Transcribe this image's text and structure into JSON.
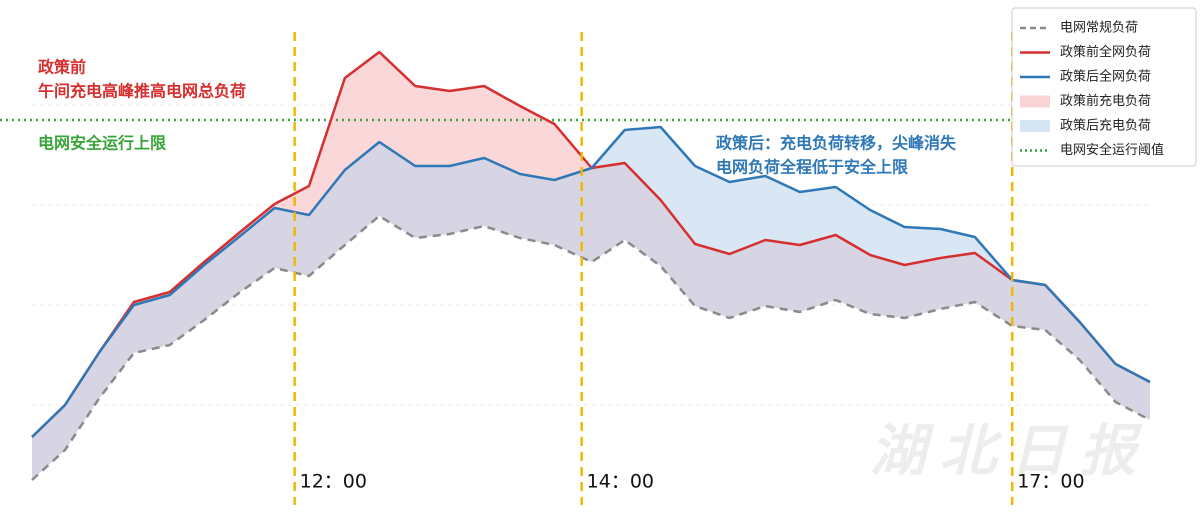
{
  "chart_data": {
    "type": "line",
    "x": [
      10.17,
      10.4,
      10.64,
      10.88,
      11.13,
      11.37,
      11.62,
      11.86,
      12.1,
      12.35,
      12.59,
      12.84,
      13.08,
      13.32,
      13.57,
      13.81,
      14.07,
      14.3,
      14.55,
      14.79,
      15.03,
      15.28,
      15.52,
      15.77,
      16.01,
      16.25,
      16.5,
      16.74,
      17.0,
      17.23,
      17.47,
      17.72,
      17.96
    ],
    "xlim": [
      10.17,
      17.96
    ],
    "ylim": [
      0,
      500
    ],
    "series": [
      {
        "name": "电网常规负荷",
        "color": "#8a8a8a",
        "dash": "8,6",
        "values": [
          20,
          50,
          102,
          147,
          155,
          180,
          208,
          232,
          224,
          255,
          284,
          262,
          266,
          274,
          262,
          255,
          238,
          260,
          234,
          194,
          182,
          194,
          188,
          200,
          186,
          182,
          191,
          198,
          174,
          170,
          140,
          98,
          80
        ]
      },
      {
        "name": "政策前全网负荷",
        "color": "#d62f2f",
        "values": [
          63,
          95,
          148,
          198,
          208,
          238,
          268,
          296,
          314,
          422,
          448,
          414,
          409,
          414,
          394,
          376,
          332,
          337,
          300,
          256,
          246,
          260,
          255,
          265,
          245,
          235,
          242,
          247,
          220,
          215,
          178,
          136,
          118
        ]
      },
      {
        "name": "政策后全网负荷",
        "color": "#2f78b8",
        "values": [
          63,
          95,
          148,
          195,
          205,
          235,
          264,
          292,
          285,
          330,
          358,
          334,
          334,
          342,
          326,
          320,
          332,
          370,
          373,
          334,
          318,
          324,
          308,
          313,
          290,
          273,
          271,
          263,
          220,
          215,
          178,
          136,
          118
        ]
      }
    ],
    "fills": [
      {
        "name": "政策前充电负荷",
        "color": "#f5b8bc",
        "upper": 1,
        "lower": 0
      },
      {
        "name": "政策后充电负荷",
        "color": "#b9d3ec",
        "upper": 2,
        "lower": 0
      }
    ],
    "threshold": {
      "name": "电网安全运行阈值",
      "value": 380,
      "color": "#3aa43a"
    },
    "vlines": [
      {
        "x": 12,
        "label": "12：00"
      },
      {
        "x": 14,
        "label": "14：00"
      },
      {
        "x": 17,
        "label": "17：00"
      }
    ],
    "vline_color": "#f2b705",
    "annotations": [
      {
        "lines": [
          "政策前",
          "午间充电高峰推高电网总负荷"
        ],
        "color": "#d62f2f"
      },
      {
        "lines": [
          "电网安全运行上限"
        ],
        "color": "#3aa43a"
      },
      {
        "lines": [
          "政策后：充电负荷转移，尖峰消失",
          "电网负荷全程低于安全上限"
        ],
        "color": "#2f78b8"
      }
    ],
    "watermark": "湖北日报"
  }
}
